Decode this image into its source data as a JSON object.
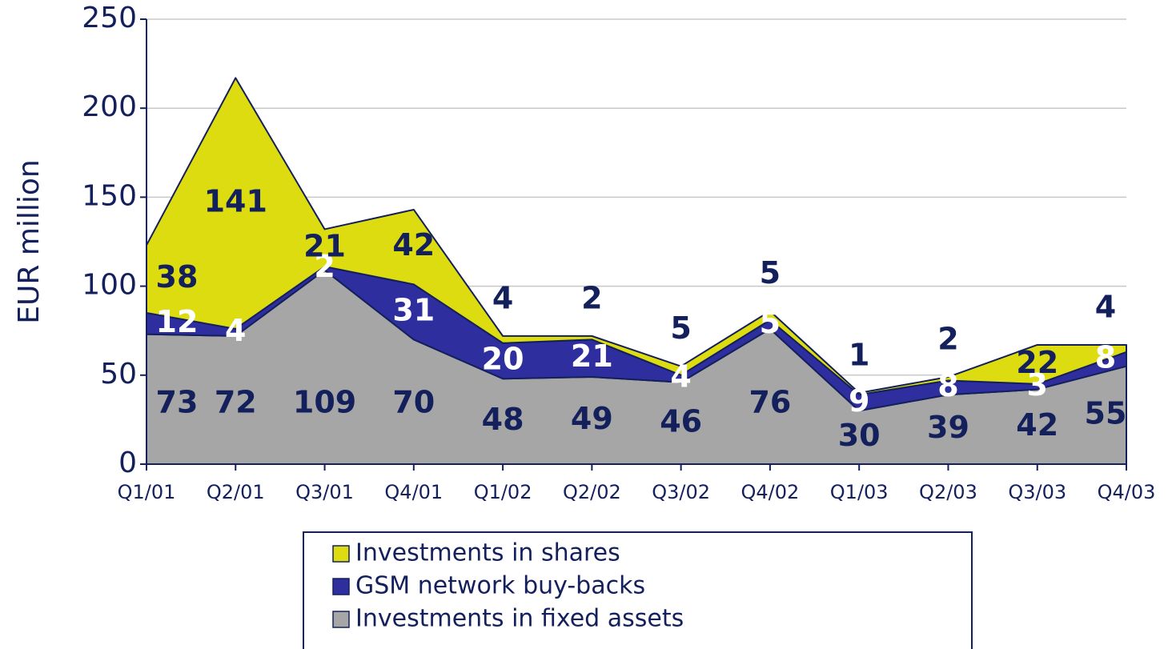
{
  "chart_data": {
    "type": "stacked_area",
    "y_label": "EUR million",
    "categories": [
      "Q1/01",
      "Q2/01",
      "Q3/01",
      "Q4/01",
      "Q1/02",
      "Q2/02",
      "Q3/02",
      "Q4/02",
      "Q1/03",
      "Q2/03",
      "Q3/03",
      "Q4/03"
    ],
    "series": [
      {
        "name": "Investments in fixed assets",
        "color": "#a6a6a6",
        "label_color": "#14205c",
        "values": [
          73,
          72,
          109,
          70,
          48,
          49,
          46,
          76,
          30,
          39,
          42,
          55
        ]
      },
      {
        "name": "GSM network buy-backs",
        "color": "#2e2e9e",
        "label_color": "#ffffff",
        "values": [
          12,
          4,
          2,
          31,
          20,
          21,
          4,
          5,
          9,
          8,
          3,
          8
        ]
      },
      {
        "name": "Investments in shares",
        "color": "#dcdc10",
        "label_color": "#14205c",
        "values": [
          38,
          141,
          21,
          42,
          4,
          2,
          5,
          5,
          1,
          2,
          22,
          4
        ]
      }
    ],
    "ylim": [
      0,
      250
    ],
    "yticks": [
      0,
      50,
      100,
      150,
      200,
      250
    ],
    "grid": true
  }
}
